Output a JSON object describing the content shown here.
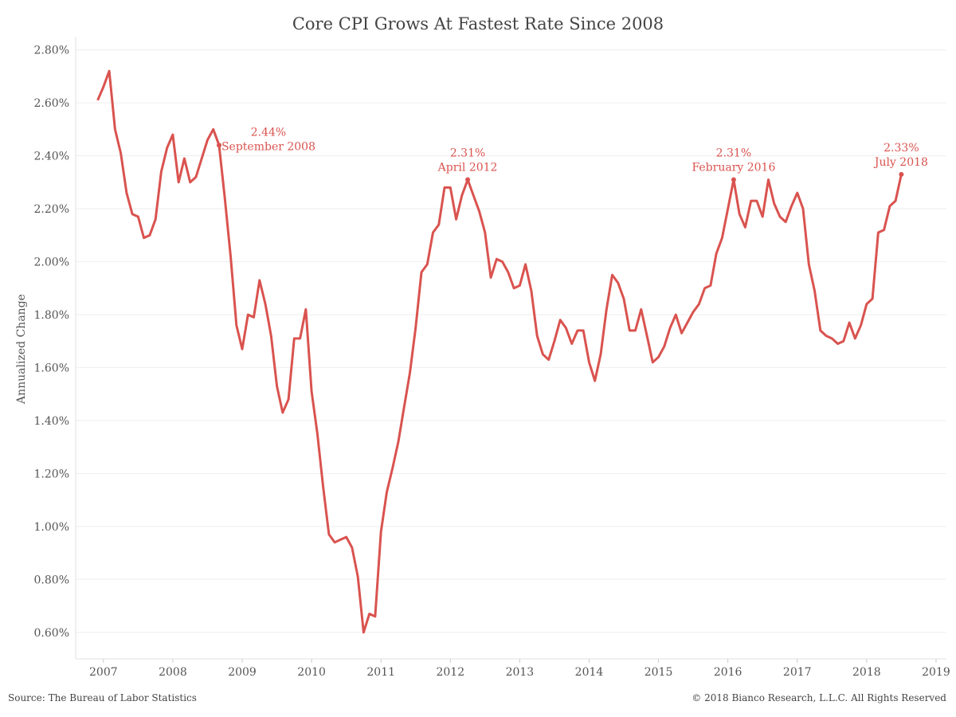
{
  "chart_data": {
    "type": "line",
    "title": "Core CPI Grows At Fastest Rate Since 2008",
    "ylabel": "Annualized Change",
    "xlabel": "",
    "ylim": [
      0.5,
      2.85
    ],
    "xlim": [
      2006.6,
      2019.15
    ],
    "grid": "horizontal",
    "line_color": "#d9534f",
    "y_ticks": [
      {
        "value": 0.6,
        "label": "0.60%"
      },
      {
        "value": 0.8,
        "label": "0.80%"
      },
      {
        "value": 1.0,
        "label": "1.00%"
      },
      {
        "value": 1.2,
        "label": "1.20%"
      },
      {
        "value": 1.4,
        "label": "1.40%"
      },
      {
        "value": 1.6,
        "label": "1.60%"
      },
      {
        "value": 1.8,
        "label": "1.80%"
      },
      {
        "value": 2.0,
        "label": "2.00%"
      },
      {
        "value": 2.2,
        "label": "2.20%"
      },
      {
        "value": 2.4,
        "label": "2.40%"
      },
      {
        "value": 2.6,
        "label": "2.60%"
      },
      {
        "value": 2.8,
        "label": "2.80%"
      }
    ],
    "x_ticks": [
      {
        "value": 2007,
        "label": "2007"
      },
      {
        "value": 2008,
        "label": "2008"
      },
      {
        "value": 2009,
        "label": "2009"
      },
      {
        "value": 2010,
        "label": "2010"
      },
      {
        "value": 2011,
        "label": "2011"
      },
      {
        "value": 2012,
        "label": "2012"
      },
      {
        "value": 2013,
        "label": "2013"
      },
      {
        "value": 2014,
        "label": "2014"
      },
      {
        "value": 2015,
        "label": "2015"
      },
      {
        "value": 2016,
        "label": "2016"
      },
      {
        "value": 2017,
        "label": "2017"
      },
      {
        "value": 2018,
        "label": "2018"
      },
      {
        "value": 2019,
        "label": "2019"
      }
    ],
    "series": [
      {
        "values": [
          [
            "2006-12",
            2.61
          ],
          [
            "2007-01",
            2.66
          ],
          [
            "2007-02",
            2.72
          ],
          [
            "2007-03",
            2.5
          ],
          [
            "2007-04",
            2.41
          ],
          [
            "2007-05",
            2.26
          ],
          [
            "2007-06",
            2.18
          ],
          [
            "2007-07",
            2.17
          ],
          [
            "2007-08",
            2.09
          ],
          [
            "2007-09",
            2.1
          ],
          [
            "2007-10",
            2.16
          ],
          [
            "2007-11",
            2.34
          ],
          [
            "2007-12",
            2.43
          ],
          [
            "2008-01",
            2.48
          ],
          [
            "2008-02",
            2.3
          ],
          [
            "2008-03",
            2.39
          ],
          [
            "2008-04",
            2.3
          ],
          [
            "2008-05",
            2.32
          ],
          [
            "2008-06",
            2.39
          ],
          [
            "2008-07",
            2.46
          ],
          [
            "2008-08",
            2.5
          ],
          [
            "2008-09",
            2.44
          ],
          [
            "2008-10",
            2.24
          ],
          [
            "2008-11",
            2.02
          ],
          [
            "2008-12",
            1.76
          ],
          [
            "2009-01",
            1.67
          ],
          [
            "2009-02",
            1.8
          ],
          [
            "2009-03",
            1.79
          ],
          [
            "2009-04",
            1.93
          ],
          [
            "2009-05",
            1.84
          ],
          [
            "2009-06",
            1.72
          ],
          [
            "2009-07",
            1.53
          ],
          [
            "2009-08",
            1.43
          ],
          [
            "2009-09",
            1.48
          ],
          [
            "2009-10",
            1.71
          ],
          [
            "2009-11",
            1.71
          ],
          [
            "2009-12",
            1.82
          ],
          [
            "2010-01",
            1.51
          ],
          [
            "2010-02",
            1.35
          ],
          [
            "2010-03",
            1.15
          ],
          [
            "2010-04",
            0.97
          ],
          [
            "2010-05",
            0.94
          ],
          [
            "2010-06",
            0.95
          ],
          [
            "2010-07",
            0.96
          ],
          [
            "2010-08",
            0.92
          ],
          [
            "2010-09",
            0.81
          ],
          [
            "2010-10",
            0.6
          ],
          [
            "2010-11",
            0.67
          ],
          [
            "2010-12",
            0.66
          ],
          [
            "2011-01",
            0.98
          ],
          [
            "2011-02",
            1.13
          ],
          [
            "2011-03",
            1.22
          ],
          [
            "2011-04",
            1.32
          ],
          [
            "2011-05",
            1.45
          ],
          [
            "2011-06",
            1.58
          ],
          [
            "2011-07",
            1.75
          ],
          [
            "2011-08",
            1.96
          ],
          [
            "2011-09",
            1.99
          ],
          [
            "2011-10",
            2.11
          ],
          [
            "2011-11",
            2.14
          ],
          [
            "2011-12",
            2.28
          ],
          [
            "2012-01",
            2.28
          ],
          [
            "2012-02",
            2.16
          ],
          [
            "2012-03",
            2.25
          ],
          [
            "2012-04",
            2.31
          ],
          [
            "2012-05",
            2.25
          ],
          [
            "2012-06",
            2.19
          ],
          [
            "2012-07",
            2.11
          ],
          [
            "2012-08",
            1.94
          ],
          [
            "2012-09",
            2.01
          ],
          [
            "2012-10",
            2.0
          ],
          [
            "2012-11",
            1.96
          ],
          [
            "2012-12",
            1.9
          ],
          [
            "2013-01",
            1.91
          ],
          [
            "2013-02",
            1.99
          ],
          [
            "2013-03",
            1.89
          ],
          [
            "2013-04",
            1.72
          ],
          [
            "2013-05",
            1.65
          ],
          [
            "2013-06",
            1.63
          ],
          [
            "2013-07",
            1.7
          ],
          [
            "2013-08",
            1.78
          ],
          [
            "2013-09",
            1.75
          ],
          [
            "2013-10",
            1.69
          ],
          [
            "2013-11",
            1.74
          ],
          [
            "2013-12",
            1.74
          ],
          [
            "2014-01",
            1.62
          ],
          [
            "2014-02",
            1.55
          ],
          [
            "2014-03",
            1.65
          ],
          [
            "2014-04",
            1.82
          ],
          [
            "2014-05",
            1.95
          ],
          [
            "2014-06",
            1.92
          ],
          [
            "2014-07",
            1.86
          ],
          [
            "2014-08",
            1.74
          ],
          [
            "2014-09",
            1.74
          ],
          [
            "2014-10",
            1.82
          ],
          [
            "2014-11",
            1.72
          ],
          [
            "2014-12",
            1.62
          ],
          [
            "2015-01",
            1.64
          ],
          [
            "2015-02",
            1.68
          ],
          [
            "2015-03",
            1.75
          ],
          [
            "2015-04",
            1.8
          ],
          [
            "2015-05",
            1.73
          ],
          [
            "2015-06",
            1.77
          ],
          [
            "2015-07",
            1.81
          ],
          [
            "2015-08",
            1.84
          ],
          [
            "2015-09",
            1.9
          ],
          [
            "2015-10",
            1.91
          ],
          [
            "2015-11",
            2.03
          ],
          [
            "2015-12",
            2.09
          ],
          [
            "2016-01",
            2.2
          ],
          [
            "2016-02",
            2.31
          ],
          [
            "2016-03",
            2.18
          ],
          [
            "2016-04",
            2.13
          ],
          [
            "2016-05",
            2.23
          ],
          [
            "2016-06",
            2.23
          ],
          [
            "2016-07",
            2.17
          ],
          [
            "2016-08",
            2.31
          ],
          [
            "2016-09",
            2.22
          ],
          [
            "2016-10",
            2.17
          ],
          [
            "2016-11",
            2.15
          ],
          [
            "2016-12",
            2.21
          ],
          [
            "2017-01",
            2.26
          ],
          [
            "2017-02",
            2.2
          ],
          [
            "2017-03",
            1.99
          ],
          [
            "2017-04",
            1.89
          ],
          [
            "2017-05",
            1.74
          ],
          [
            "2017-06",
            1.72
          ],
          [
            "2017-07",
            1.71
          ],
          [
            "2017-08",
            1.69
          ],
          [
            "2017-09",
            1.7
          ],
          [
            "2017-10",
            1.77
          ],
          [
            "2017-11",
            1.71
          ],
          [
            "2017-12",
            1.76
          ],
          [
            "2018-01",
            1.84
          ],
          [
            "2018-02",
            1.86
          ],
          [
            "2018-03",
            2.11
          ],
          [
            "2018-04",
            2.12
          ],
          [
            "2018-05",
            2.21
          ],
          [
            "2018-06",
            2.23
          ],
          [
            "2018-07",
            2.33
          ]
        ]
      }
    ],
    "annotations": [
      {
        "x": "2008-09",
        "y": 2.44,
        "value_label": "2.44%",
        "date_label": "September 2008",
        "align": "right"
      },
      {
        "x": "2012-04",
        "y": 2.31,
        "value_label": "2.31%",
        "date_label": "April 2012",
        "align": "center"
      },
      {
        "x": "2016-02",
        "y": 2.31,
        "value_label": "2.31%",
        "date_label": "February 2016",
        "align": "center"
      },
      {
        "x": "2018-07",
        "y": 2.33,
        "value_label": "2.33%",
        "date_label": "July 2018",
        "align": "center"
      }
    ]
  },
  "footer": {
    "source": "Source: The Bureau of Labor Statistics",
    "copyright": "© 2018 Bianco Research, L.L.C. All Rights Reserved"
  }
}
